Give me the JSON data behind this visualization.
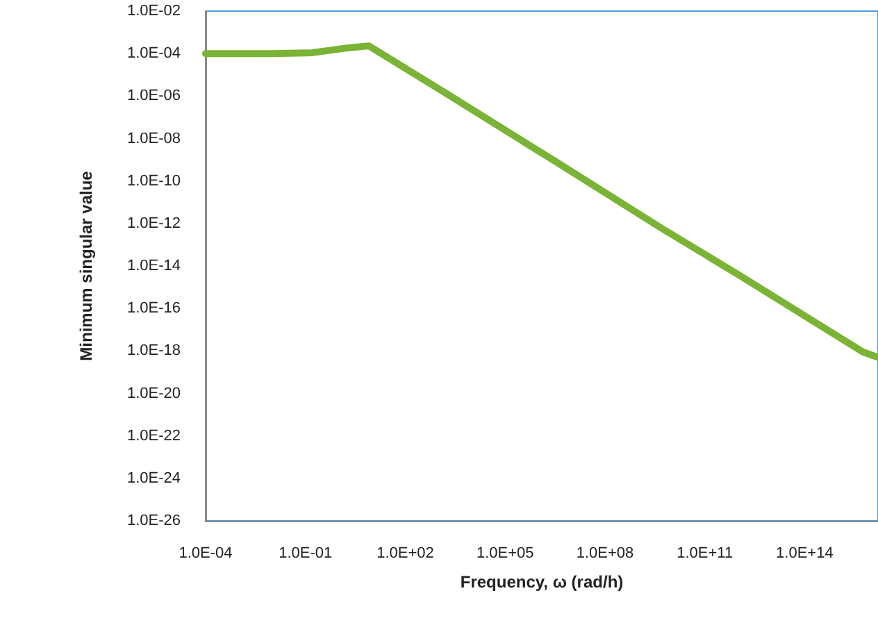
{
  "chart_data": {
    "type": "line",
    "xlabel": "Frequency, ω (rad/h)",
    "ylabel": "Minimum singular value",
    "log": "xy",
    "grid": false,
    "marker": "none",
    "line_style": "solid",
    "x": [
      0.0001,
      0.01,
      0.16,
      1.6,
      8,
      1600,
      3200000,
      5000000000,
      1000000000000,
      5600000000000000,
      16000000000000000
    ],
    "series": [
      {
        "color": "#7ab335",
        "values": [
          0.0001,
          0.0001,
          0.00011,
          0.00018,
          0.00023,
          1.4e-06,
          8.5e-10,
          6e-13,
          4e-15,
          9e-19,
          5e-19
        ]
      }
    ],
    "xlim": [
      0.0001,
      16000000000000000
    ],
    "xticks": [
      {
        "value": 0.0001,
        "label": "1.0E-04"
      },
      {
        "value": 0.1,
        "label": "1.0E-01"
      },
      {
        "value": 100,
        "label": "1.0E+02"
      },
      {
        "value": 100000,
        "label": "1.0E+05"
      },
      {
        "value": 100000000,
        "label": "1.0E+08"
      },
      {
        "value": 100000000000,
        "label": "1.0E+11"
      },
      {
        "value": 100000000000000,
        "label": "1.0E+14"
      }
    ],
    "ylim": [
      1e-26,
      0.01
    ],
    "yticks": [
      {
        "value": 1e-26,
        "label": "1.0E-26"
      },
      {
        "value": 1e-24,
        "label": "1.0E-24"
      },
      {
        "value": 1e-22,
        "label": "1.0E-22"
      },
      {
        "value": 1e-20,
        "label": "1.0E-20"
      },
      {
        "value": 1e-18,
        "label": "1.0E-18"
      },
      {
        "value": 1e-16,
        "label": "1.0E-16"
      },
      {
        "value": 1e-14,
        "label": "1.0E-14"
      },
      {
        "value": 1e-12,
        "label": "1.0E-12"
      },
      {
        "value": 1e-10,
        "label": "1.0E-10"
      },
      {
        "value": 1e-08,
        "label": "1.0E-08"
      },
      {
        "value": 1e-06,
        "label": "1.0E-06"
      },
      {
        "value": 0.0001,
        "label": "1.0E-04"
      },
      {
        "value": 0.01,
        "label": "1.0E-02"
      }
    ]
  }
}
